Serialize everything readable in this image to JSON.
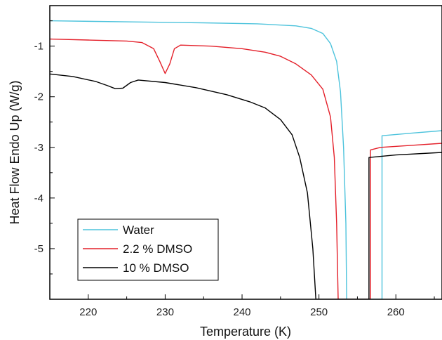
{
  "chart_data": {
    "type": "line",
    "title": "",
    "xlabel": "Temperature (K)",
    "ylabel": "Heat Flow Endo Up (W/g)",
    "xlim": [
      215,
      266
    ],
    "ylim": [
      -6.0,
      -0.2
    ],
    "x_ticks": [
      220,
      230,
      240,
      250,
      260
    ],
    "y_ticks": [
      -1,
      -2,
      -3,
      -4,
      -5
    ],
    "x_tick_labels": [
      "220",
      "230",
      "240",
      "250",
      "260"
    ],
    "y_tick_labels": [
      "-1",
      "-2",
      "-3",
      "-4",
      "-5"
    ],
    "grid": false,
    "legend_position": "bottom-left",
    "series": [
      {
        "name": "Water",
        "color": "#4dc3dc",
        "points": [
          [
            215,
            -0.5
          ],
          [
            225,
            -0.52
          ],
          [
            235,
            -0.54
          ],
          [
            242,
            -0.56
          ],
          [
            247,
            -0.6
          ],
          [
            249,
            -0.65
          ],
          [
            250.5,
            -0.75
          ],
          [
            251.5,
            -0.95
          ],
          [
            252.3,
            -1.3
          ],
          [
            252.8,
            -1.9
          ],
          [
            253.2,
            -3.0
          ],
          [
            253.5,
            -4.5
          ],
          [
            253.6,
            -6.0
          ],
          [
            258.2,
            -6.0
          ],
          [
            258.2,
            -2.77
          ],
          [
            262,
            -2.72
          ],
          [
            266,
            -2.67
          ]
        ]
      },
      {
        "name": "2.2 % DMSO",
        "color": "#e4202a",
        "points": [
          [
            215,
            -0.86
          ],
          [
            220,
            -0.88
          ],
          [
            225,
            -0.9
          ],
          [
            227,
            -0.93
          ],
          [
            228.5,
            -1.05
          ],
          [
            229.3,
            -1.3
          ],
          [
            230,
            -1.54
          ],
          [
            230.6,
            -1.35
          ],
          [
            231.2,
            -1.05
          ],
          [
            232,
            -0.98
          ],
          [
            236,
            -1.0
          ],
          [
            240,
            -1.05
          ],
          [
            243,
            -1.12
          ],
          [
            245,
            -1.2
          ],
          [
            247,
            -1.35
          ],
          [
            249,
            -1.57
          ],
          [
            250.5,
            -1.85
          ],
          [
            251.5,
            -2.4
          ],
          [
            252,
            -3.2
          ],
          [
            252.3,
            -4.5
          ],
          [
            252.5,
            -6.0
          ],
          [
            256.7,
            -6.0
          ],
          [
            256.7,
            -3.05
          ],
          [
            258,
            -3.0
          ],
          [
            262,
            -2.96
          ],
          [
            266,
            -2.92
          ]
        ]
      },
      {
        "name": "10  % DMSO",
        "color": "#000000",
        "points": [
          [
            215,
            -1.55
          ],
          [
            218,
            -1.6
          ],
          [
            221,
            -1.7
          ],
          [
            222.5,
            -1.78
          ],
          [
            223.5,
            -1.84
          ],
          [
            224.5,
            -1.83
          ],
          [
            225.5,
            -1.72
          ],
          [
            226.5,
            -1.67
          ],
          [
            230,
            -1.72
          ],
          [
            234,
            -1.82
          ],
          [
            238,
            -1.96
          ],
          [
            241,
            -2.1
          ],
          [
            243,
            -2.22
          ],
          [
            245,
            -2.45
          ],
          [
            246.5,
            -2.75
          ],
          [
            247.5,
            -3.2
          ],
          [
            248.5,
            -3.9
          ],
          [
            249.2,
            -5.0
          ],
          [
            249.6,
            -6.0
          ],
          [
            256.5,
            -6.0
          ],
          [
            256.5,
            -3.2
          ],
          [
            260,
            -3.15
          ],
          [
            266,
            -3.1
          ]
        ]
      }
    ]
  }
}
